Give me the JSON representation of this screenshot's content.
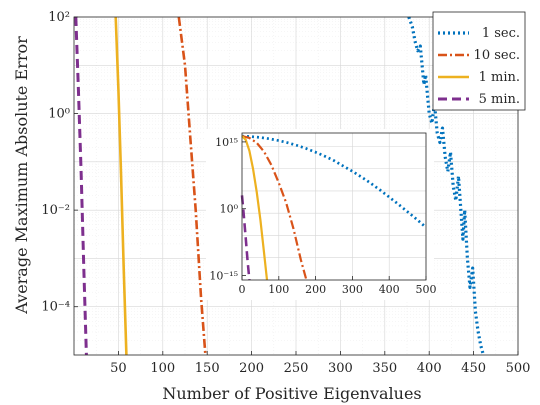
{
  "chart_data": [
    {
      "type": "line",
      "xlabel": "Number of Positive Eigenvalues",
      "ylabel": "Average Maximum Absolute Error",
      "xlim": [
        0,
        500
      ],
      "ylim_exp": [
        -5,
        2
      ],
      "yscale": "log",
      "grid": true,
      "minor_grid": true,
      "xticks": [
        50,
        100,
        150,
        200,
        250,
        300,
        350,
        400,
        450,
        500
      ],
      "yticks": [
        {
          "exp": 2,
          "label": "10²"
        },
        {
          "exp": 0,
          "label": "10⁰"
        },
        {
          "exp": -2,
          "label": "10⁻²"
        },
        {
          "exp": -4,
          "label": "10⁻⁴"
        }
      ],
      "legend_position": "top-right",
      "series": [
        {
          "name": "1 sec.",
          "color": "#0072BD",
          "dash": "dot",
          "x": [
            377,
            381,
            384,
            387,
            390,
            392,
            394,
            396,
            398,
            400,
            403,
            406,
            409,
            412,
            415,
            418,
            421,
            424,
            427,
            430,
            433,
            436,
            438,
            440,
            443,
            446,
            449,
            452,
            455,
            458,
            461
          ],
          "log10_y": [
            2.0,
            1.8,
            1.5,
            1.3,
            1.4,
            1.0,
            0.6,
            0.8,
            0.4,
            0.0,
            -0.2,
            0.2,
            -0.4,
            -0.6,
            -0.3,
            -0.9,
            -1.2,
            -0.8,
            -1.5,
            -1.8,
            -1.3,
            -2.1,
            -2.6,
            -2.0,
            -3.0,
            -3.6,
            -3.2,
            -4.1,
            -4.5,
            -4.8,
            -5.0
          ]
        },
        {
          "name": "10 sec.",
          "color": "#D95319",
          "dash": "dashdot",
          "x": [
            118,
            125,
            131,
            137,
            143,
            148
          ],
          "log10_y": [
            2.0,
            1.0,
            -0.5,
            -2.0,
            -3.8,
            -5.0
          ]
        },
        {
          "name": "1 min.",
          "color": "#EDB120",
          "dash": "solid",
          "x": [
            47,
            50,
            53,
            56,
            59
          ],
          "log10_y": [
            2.0,
            0.5,
            -1.3,
            -3.2,
            -5.0
          ]
        },
        {
          "name": "5 min.",
          "color": "#7E2F8E",
          "dash": "dash",
          "x": [
            2,
            5,
            8,
            11,
            14
          ],
          "log10_y": [
            2.0,
            0.5,
            -1.2,
            -3.2,
            -5.0
          ]
        }
      ]
    },
    {
      "type": "line",
      "inset": true,
      "xlim": [
        0,
        500
      ],
      "ylim_exp": [
        -16,
        17
      ],
      "yscale": "log",
      "grid": true,
      "xticks": [
        0,
        100,
        200,
        300,
        400,
        500
      ],
      "yticks": [
        {
          "exp": 15,
          "label": "10¹⁵"
        },
        {
          "exp": 0,
          "label": "10⁰"
        },
        {
          "exp": -15,
          "label": "10⁻¹⁵"
        }
      ],
      "series": [
        {
          "name": "1 sec.",
          "color": "#0072BD",
          "dash": "dot",
          "x": [
            0,
            25,
            50,
            75,
            100,
            125,
            150,
            175,
            200,
            225,
            250,
            275,
            300,
            325,
            350,
            375,
            400,
            425,
            450,
            475,
            500
          ],
          "log10_y": [
            16.3,
            16.2,
            16.0,
            15.7,
            15.3,
            14.8,
            14.2,
            13.5,
            12.7,
            11.8,
            10.8,
            9.6,
            8.4,
            7.1,
            5.7,
            4.2,
            2.6,
            1.0,
            -0.7,
            -2.4,
            -4.2
          ]
        },
        {
          "name": "10 sec.",
          "color": "#D95319",
          "dash": "dashdot",
          "x": [
            0,
            20,
            40,
            60,
            80,
            100,
            120,
            140,
            160,
            175
          ],
          "log10_y": [
            16.3,
            15.9,
            14.8,
            12.8,
            9.8,
            5.8,
            1.3,
            -4.5,
            -11.5,
            -16.0
          ]
        },
        {
          "name": "1 min.",
          "color": "#EDB120",
          "dash": "solid",
          "x": [
            0,
            10,
            20,
            30,
            40,
            50,
            60,
            68
          ],
          "log10_y": [
            16.3,
            15.5,
            13.0,
            9.0,
            3.8,
            -2.5,
            -10.0,
            -16.0
          ]
        },
        {
          "name": "5 min.",
          "color": "#7E2F8E",
          "dash": "dash",
          "x": [
            0,
            5,
            10,
            15,
            20
          ],
          "log10_y": [
            3.0,
            -1.5,
            -6.5,
            -11.5,
            -16.0
          ]
        }
      ]
    }
  ]
}
